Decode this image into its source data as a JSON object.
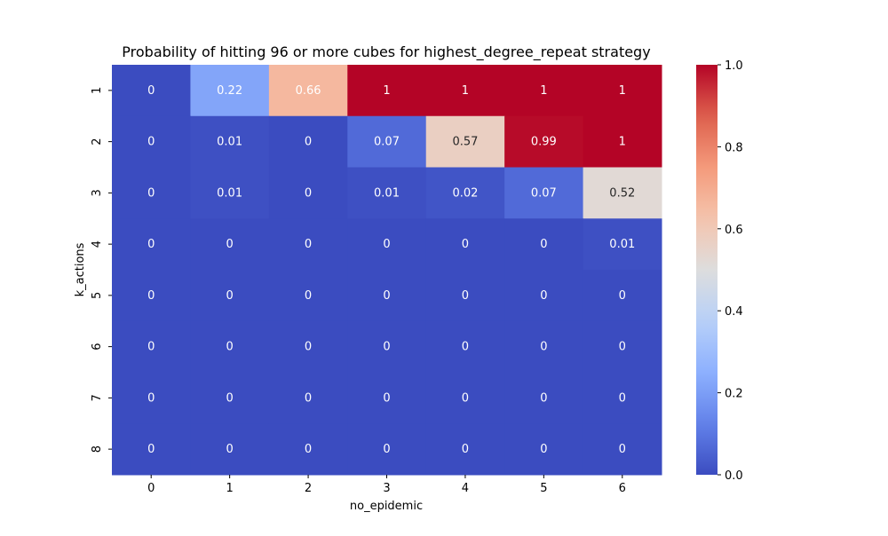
{
  "chart_data": {
    "type": "heatmap",
    "title": "Probability of hitting 96 or more cubes for highest_degree_repeat strategy",
    "xlabel": "no_epidemic",
    "ylabel": "k_actions",
    "x_categories": [
      "0",
      "1",
      "2",
      "3",
      "4",
      "5",
      "6"
    ],
    "y_categories": [
      "1",
      "2",
      "3",
      "4",
      "5",
      "6",
      "7",
      "8"
    ],
    "values": [
      [
        0,
        0.22,
        0.66,
        1,
        1,
        1,
        1
      ],
      [
        0,
        0.01,
        0,
        0.07,
        0.57,
        0.99,
        1
      ],
      [
        0,
        0.01,
        0,
        0.01,
        0.02,
        0.07,
        0.52
      ],
      [
        0,
        0,
        0,
        0,
        0,
        0,
        0.01
      ],
      [
        0,
        0,
        0,
        0,
        0,
        0,
        0
      ],
      [
        0,
        0,
        0,
        0,
        0,
        0,
        0
      ],
      [
        0,
        0,
        0,
        0,
        0,
        0,
        0
      ],
      [
        0,
        0,
        0,
        0,
        0,
        0,
        0
      ]
    ],
    "colormap": "coolwarm",
    "vmin": 0,
    "vmax": 1,
    "colorbar_ticks": [
      "0.0",
      "0.2",
      "0.4",
      "0.6",
      "0.8",
      "1.0"
    ]
  }
}
